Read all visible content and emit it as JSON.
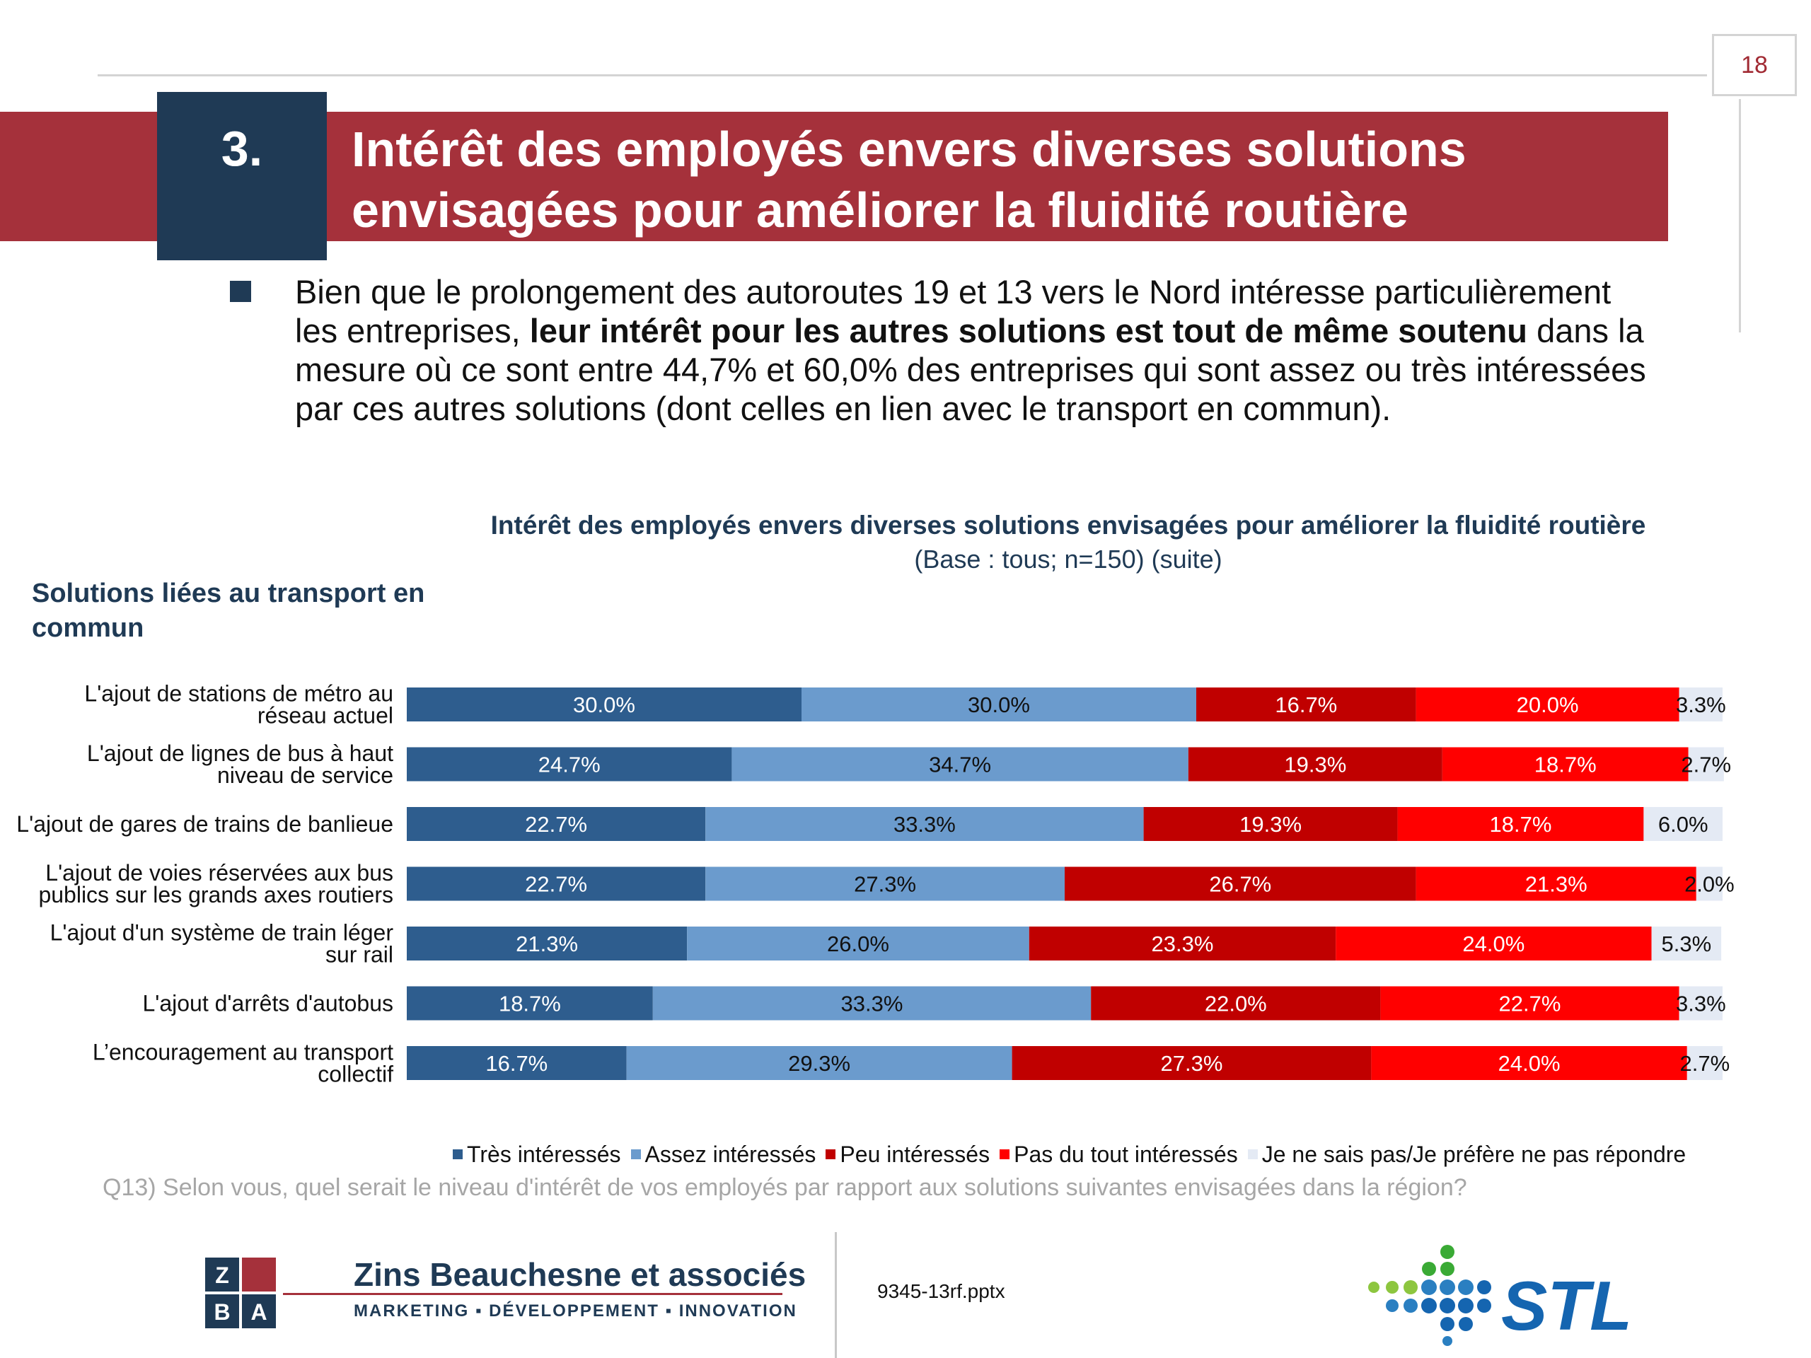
{
  "page": {
    "number": "18"
  },
  "section": {
    "number": "3.",
    "title_line1": "Intérêt des employés envers diverses solutions",
    "title_line2": "envisagées pour améliorer la fluidité routière"
  },
  "bullet": {
    "part1": "Bien que le prolongement des autoroutes 19 et 13 vers le Nord intéresse particulièrement les entreprises, ",
    "bold": "leur intérêt pour les autres solutions est tout de même soutenu",
    "part2": " dans la mesure où ce sont entre 44,7% et 60,0% des entreprises qui sont assez ou très intéressées par ces autres solutions (dont celles en lien avec le transport en commun)."
  },
  "category_heading": "Solutions liées au transport en commun",
  "question_note": "Q13) Selon vous, quel serait le niveau d'intérêt de vos employés par rapport aux solutions suivantes envisagées dans la région?",
  "footer": {
    "file_name": "9345-13rf.pptx",
    "company_name": "Zins Beauchesne et associés",
    "company_tagline": "MARKETING ▪ DÉVELOPPEMENT ▪ INNOVATION",
    "logo_letters": [
      "Z",
      "B",
      "A"
    ],
    "partner_logo_text": "STL"
  },
  "colors": {
    "title_band": "#a5313b",
    "section_box": "#1f3a55",
    "tres": "#2e5d8e",
    "assez": "#6b9bcd",
    "peu": "#c00000",
    "pas": "#ff0000",
    "nsp": "#e4eaf4"
  },
  "chart_data": {
    "type": "bar",
    "orientation": "horizontal",
    "stacked": true,
    "unit": "%",
    "title": "Intérêt des employés envers diverses solutions envisagées pour améliorer la fluidité routière",
    "subtitle": "(Base : tous; n=150) (suite)",
    "legend_position": "bottom",
    "categories": [
      [
        "L'ajout de stations de métro au",
        "réseau actuel"
      ],
      [
        "L'ajout de lignes de bus à haut",
        "niveau de service"
      ],
      [
        "L'ajout de gares de trains de banlieue"
      ],
      [
        "L'ajout de voies réservées aux bus",
        "publics sur les grands axes routiers"
      ],
      [
        "L'ajout d'un système de train léger",
        "sur rail"
      ],
      [
        "L'ajout d'arrêts d'autobus"
      ],
      [
        "L’encouragement au transport",
        "collectif"
      ]
    ],
    "series": [
      {
        "name": "Très intéressés",
        "color": "#2e5d8e",
        "label_color": "#ffffff",
        "values": [
          30.0,
          24.7,
          22.7,
          22.7,
          21.3,
          18.7,
          16.7
        ],
        "labels": [
          "30.0%",
          "24.7%",
          "22.7%",
          "22.7%",
          "21.3%",
          "18.7%",
          "16.7%"
        ]
      },
      {
        "name": "Assez intéressés",
        "color": "#6b9bcd",
        "label_color": "#111111",
        "values": [
          30.0,
          34.7,
          33.3,
          27.3,
          26.0,
          33.3,
          29.3
        ],
        "labels": [
          "30.0%",
          "34.7%",
          "33.3%",
          "27.3%",
          "26.0%",
          "33.3%",
          "29.3%"
        ]
      },
      {
        "name": "Peu intéressés",
        "color": "#c00000",
        "label_color": "#ffffff",
        "values": [
          16.7,
          19.3,
          19.3,
          26.7,
          23.3,
          22.0,
          27.3
        ],
        "labels": [
          "16.7%",
          "19.3%",
          "19.3%",
          "26.7%",
          "23.3%",
          "22.0%",
          "27.3%"
        ]
      },
      {
        "name": "Pas du tout intéressés",
        "color": "#ff0000",
        "label_color": "#ffffff",
        "values": [
          20.0,
          18.7,
          18.7,
          21.3,
          24.0,
          22.7,
          24.0
        ],
        "labels": [
          "20.0%",
          "18.7%",
          "18.7%",
          "21.3%",
          "24.0%",
          "22.7%",
          "24.0%"
        ]
      },
      {
        "name": "Je ne sais pas/Je préfère ne pas répondre",
        "color": "#e4eaf4",
        "label_color": "#111111",
        "values": [
          3.3,
          2.7,
          6.0,
          2.0,
          5.3,
          3.3,
          2.7
        ],
        "labels": [
          "3.3%",
          "2.7%",
          "6.0%",
          "2.0%",
          "5.3%",
          "3.3%",
          "2.7%"
        ]
      }
    ]
  }
}
